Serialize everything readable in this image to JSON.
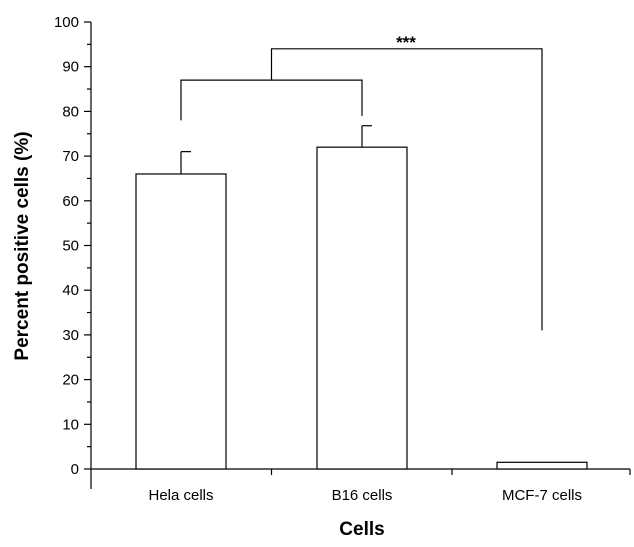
{
  "chart_data": {
    "type": "bar",
    "categories": [
      "Hela cells",
      "B16 cells",
      "MCF-7 cells"
    ],
    "values": [
      66,
      72,
      1.5
    ],
    "error_upper": [
      71,
      76.8,
      null
    ],
    "xlabel": "Cells",
    "ylabel": "Percent positive cells (%)",
    "ylim": [
      0,
      100
    ],
    "yticks": [
      0,
      10,
      20,
      30,
      40,
      50,
      60,
      70,
      80,
      90,
      100
    ],
    "ytick_labels": [
      "0",
      "10",
      "20",
      "30",
      "40",
      "50",
      "60",
      "70",
      "80",
      "90",
      "100"
    ],
    "grid": false,
    "bar_fill": "#ffffff",
    "bar_stroke": "#000000",
    "significance": {
      "label": "***",
      "inner_bracket": {
        "from_category": 0,
        "to_category": 1,
        "y": 87,
        "left_end": 78,
        "right_end": 79
      },
      "outer_bracket": {
        "y": 94,
        "right_end": 31
      }
    }
  }
}
